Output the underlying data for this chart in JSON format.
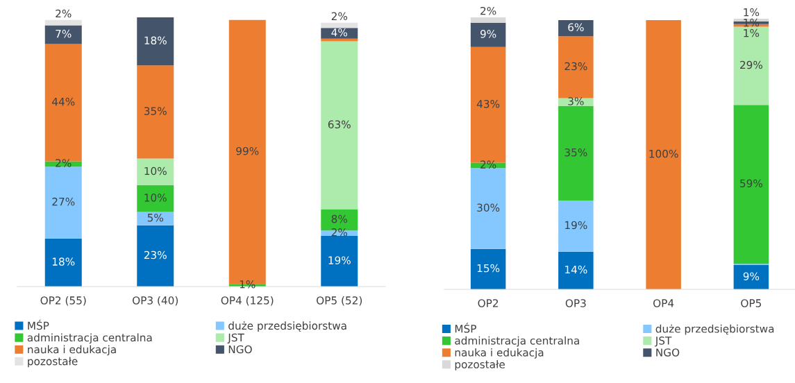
{
  "chart_data": [
    {
      "type": "bar",
      "stacked": true,
      "legend": "bottom",
      "categories": [
        "OP2 (55)",
        "OP3 (40)",
        "OP4 (125)",
        "OP5 (52)"
      ],
      "series": [
        {
          "name": "MŚP",
          "color": "#0070c0",
          "values": [
            18,
            23,
            0,
            19
          ],
          "value_labels": [
            "18%",
            "23%",
            null,
            "19%"
          ]
        },
        {
          "name": "duże przedsiębiorstwa",
          "color": "#85c8ff",
          "values": [
            27,
            5,
            0,
            2
          ],
          "value_labels": [
            "27%",
            "5%",
            null,
            "2%"
          ]
        },
        {
          "name": "administracja centralna",
          "color": "#33c733",
          "values": [
            2,
            10,
            1,
            8
          ],
          "value_labels": [
            "2%",
            "10%",
            "1%",
            "8%"
          ]
        },
        {
          "name": "JST",
          "color": "#acebac",
          "values": [
            0,
            10,
            0,
            63
          ],
          "value_labels": [
            null,
            "10%",
            null,
            "63%"
          ]
        },
        {
          "name": "nauka i edukacja",
          "color": "#ed7d31",
          "values": [
            44,
            35,
            99,
            1
          ],
          "value_labels": [
            "44%",
            "35%",
            "99%",
            null
          ]
        },
        {
          "name": "NGO",
          "color": "#44546a",
          "values": [
            7,
            18,
            0,
            4
          ],
          "value_labels": [
            "7%",
            "18%",
            null,
            "4%"
          ]
        },
        {
          "name": "pozostałe",
          "color": "#e3e3e3",
          "values": [
            2,
            0,
            0,
            2
          ],
          "value_labels": [
            "2%",
            null,
            null,
            "2%"
          ]
        }
      ]
    },
    {
      "type": "bar",
      "stacked": true,
      "legend": "bottom",
      "categories": [
        "OP2",
        "OP3",
        "OP4",
        "OP5"
      ],
      "series": [
        {
          "name": "MŚP",
          "color": "#0070c0",
          "values": [
            15,
            14,
            0,
            9
          ],
          "value_labels": [
            "15%",
            "14%",
            null,
            "9%"
          ]
        },
        {
          "name": "duże przedsiębiorstwa",
          "color": "#85c8ff",
          "values": [
            30,
            19,
            0,
            0.5
          ],
          "value_labels": [
            "30%",
            "19%",
            null,
            null
          ]
        },
        {
          "name": "administracja centralna",
          "color": "#33c733",
          "values": [
            2,
            35,
            0,
            59
          ],
          "value_labels": [
            "2%",
            "35%",
            null,
            "59%"
          ]
        },
        {
          "name": "JST",
          "color": "#acebac",
          "values": [
            0,
            3,
            0,
            29
          ],
          "value_labels": [
            null,
            "3%",
            null,
            "29%"
          ]
        },
        {
          "name": "nauka i edukacja",
          "color": "#ed7d31",
          "values": [
            43,
            23,
            100,
            1
          ],
          "value_labels": [
            "43%",
            "23%",
            "100%",
            "1%"
          ]
        },
        {
          "name": "NGO",
          "color": "#44546a",
          "values": [
            9,
            6,
            0,
            1
          ],
          "value_labels": [
            "9%",
            "6%",
            null,
            "1%"
          ]
        },
        {
          "name": "pozostałe",
          "color": "#d9d9d9",
          "values": [
            2,
            0,
            0,
            1
          ],
          "value_labels": [
            "2%",
            null,
            null,
            "1%"
          ]
        }
      ]
    }
  ]
}
